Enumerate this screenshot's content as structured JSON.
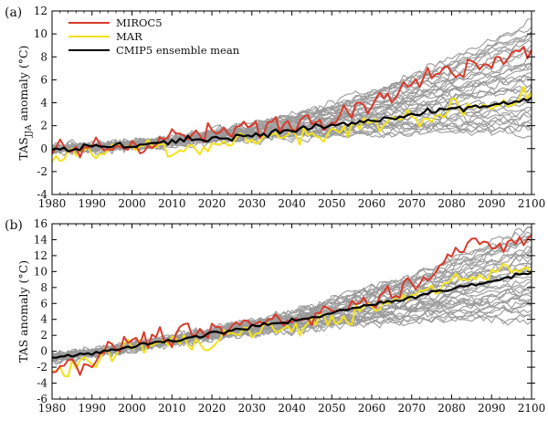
{
  "colors": {
    "models": "#9a9a9a",
    "miroc5": "#d93a2b",
    "mar": "#f3e21a",
    "ensemble_mean": "#000000"
  },
  "legend": {
    "miroc5": "MIROC5",
    "mar": "MAR",
    "ensemble_mean": "CMIP5 ensemble mean"
  },
  "chart_data": [
    {
      "type": "line",
      "panel_label": "(a)",
      "ylabel_main": "TAS",
      "ylabel_sub": "JJA",
      "ylabel_rest": " anomaly (°C)",
      "xlim": [
        1980,
        2100
      ],
      "ylim": [
        -4,
        12
      ],
      "xticks": [
        1980,
        1990,
        2000,
        2010,
        2020,
        2030,
        2040,
        2050,
        2060,
        2070,
        2080,
        2090,
        2100
      ],
      "yticks": [
        -4,
        -2,
        0,
        2,
        4,
        6,
        8,
        10,
        12
      ],
      "legend_position": "top-left",
      "ensemble_members": 36,
      "ensemble_range_2100": [
        1.0,
        11.0
      ],
      "series": [
        {
          "name": "CMIP5 ensemble mean",
          "color_key": "ensemble_mean",
          "x": [
            1980,
            1990,
            2000,
            2010,
            2020,
            2030,
            2040,
            2050,
            2060,
            2070,
            2080,
            2090,
            2100
          ],
          "y": [
            0.0,
            0.1,
            0.3,
            0.6,
            0.9,
            1.2,
            1.6,
            2.0,
            2.4,
            2.9,
            3.4,
            3.8,
            4.2
          ]
        },
        {
          "name": "MIROC5",
          "color_key": "miroc5",
          "x": [
            1980,
            1990,
            2000,
            2010,
            2020,
            2030,
            2040,
            2050,
            2060,
            2070,
            2080,
            2090,
            2100
          ],
          "y": [
            -0.5,
            0.0,
            0.4,
            1.0,
            1.2,
            1.7,
            2.4,
            3.2,
            4.2,
            5.5,
            7.0,
            8.0,
            8.8
          ]
        },
        {
          "name": "MAR",
          "color_key": "mar",
          "x": [
            1980,
            1990,
            2000,
            2010,
            2020,
            2030,
            2040,
            2050,
            2060,
            2070,
            2080,
            2090,
            2100
          ],
          "y": [
            -0.6,
            -0.2,
            0.3,
            0.2,
            0.4,
            0.8,
            1.2,
            1.5,
            2.1,
            2.7,
            3.5,
            4.0,
            4.4
          ]
        }
      ]
    },
    {
      "type": "line",
      "panel_label": "(b)",
      "ylabel_main": "TAS",
      "ylabel_sub": "",
      "ylabel_rest": " anomaly (°C)",
      "xlim": [
        1980,
        2100
      ],
      "ylim": [
        -6,
        16
      ],
      "xticks": [
        1980,
        1990,
        2000,
        2010,
        2020,
        2030,
        2040,
        2050,
        2060,
        2070,
        2080,
        2090,
        2100
      ],
      "yticks": [
        -6,
        -4,
        -2,
        0,
        2,
        4,
        6,
        8,
        10,
        12,
        14,
        16
      ],
      "legend_position": "none",
      "ensemble_members": 36,
      "ensemble_range_2100": [
        4.0,
        15.5
      ],
      "series": [
        {
          "name": "CMIP5 ensemble mean",
          "color_key": "ensemble_mean",
          "x": [
            1980,
            1990,
            2000,
            2010,
            2020,
            2030,
            2040,
            2050,
            2060,
            2070,
            2080,
            2090,
            2100
          ],
          "y": [
            -0.8,
            -0.2,
            0.6,
            1.4,
            2.2,
            3.0,
            3.8,
            4.8,
            5.8,
            6.8,
            7.8,
            8.9,
            9.9
          ]
        },
        {
          "name": "MIROC5",
          "color_key": "miroc5",
          "x": [
            1980,
            1990,
            2000,
            2010,
            2020,
            2030,
            2040,
            2050,
            2060,
            2070,
            2080,
            2090,
            2100
          ],
          "y": [
            -2.0,
            -1.0,
            1.5,
            1.8,
            2.2,
            3.5,
            4.2,
            5.2,
            6.5,
            8.5,
            12.5,
            13.2,
            14.0
          ]
        },
        {
          "name": "MAR",
          "color_key": "mar",
          "x": [
            1980,
            1990,
            2000,
            2010,
            2020,
            2030,
            2040,
            2050,
            2060,
            2070,
            2080,
            2090,
            2100
          ],
          "y": [
            -2.0,
            -1.5,
            0.8,
            1.0,
            1.5,
            2.4,
            3.0,
            4.0,
            5.2,
            6.8,
            9.0,
            10.0,
            10.5
          ]
        }
      ]
    }
  ]
}
